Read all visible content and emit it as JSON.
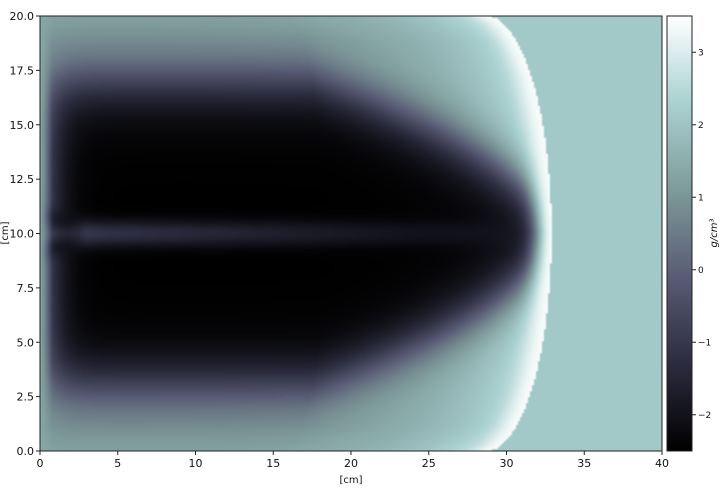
{
  "chart_data": {
    "type": "heatmap",
    "title": "",
    "xlabel": "[cm]",
    "ylabel": "[cm]",
    "xlim": [
      0,
      40
    ],
    "ylim": [
      0,
      20
    ],
    "xticks": [
      0,
      5,
      10,
      15,
      20,
      25,
      30,
      35,
      40
    ],
    "xtick_labels": [
      "0",
      "5",
      "10",
      "15",
      "20",
      "25",
      "30",
      "35",
      "40"
    ],
    "yticks": [
      0,
      2.5,
      5,
      7.5,
      10,
      12.5,
      15,
      17.5,
      20
    ],
    "ytick_labels": [
      "0.0",
      "2.5",
      "5.0",
      "7.5",
      "10.0",
      "12.5",
      "15.0",
      "17.5",
      "20.0"
    ],
    "colorbar": {
      "label": "g/cm³",
      "range": [
        -2.5,
        3.5
      ],
      "ticks": [
        -2,
        -1,
        0,
        1,
        2,
        3
      ],
      "tick_labels": [
        "−2",
        "−1",
        "0",
        "1",
        "2",
        "3"
      ],
      "colormap": "bone",
      "colors": [
        "#000000",
        "#2c2c3f",
        "#595c75",
        "#7e9a9a",
        "#aad1d1",
        "#ffffff"
      ]
    },
    "field": {
      "background_value": 2.1,
      "shock_front_x_at_center": 32.9,
      "shock_front_x_at_edges": 28.7,
      "shock_front_peak_value": 3.4,
      "dark_region_value": -2.5,
      "center_streak_value": -0.8,
      "edge_value": 1.4
    }
  }
}
